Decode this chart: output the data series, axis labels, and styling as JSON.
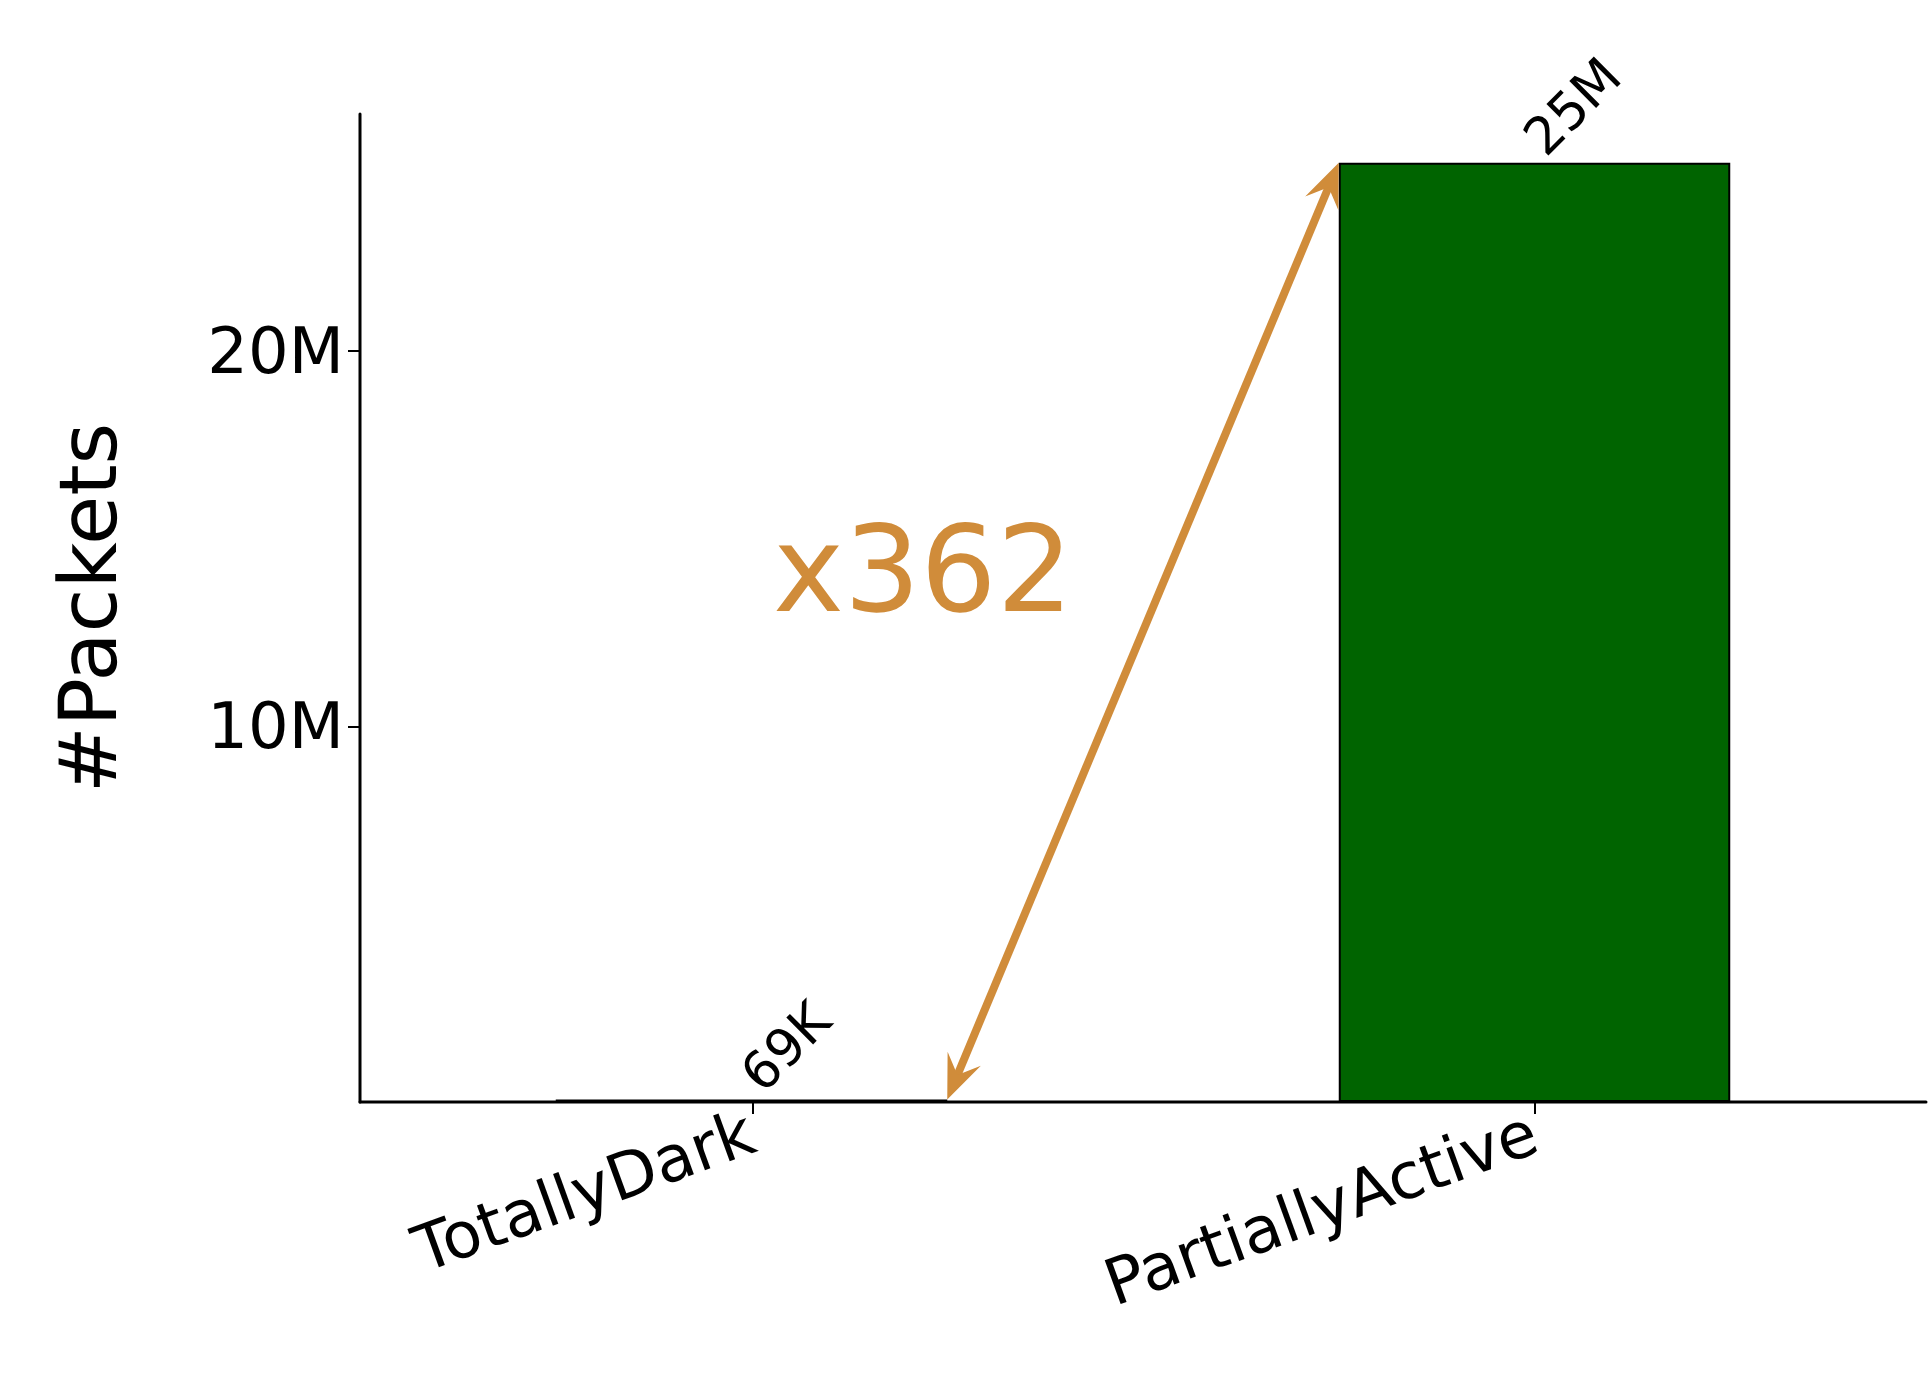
{
  "chart_data": {
    "type": "bar",
    "ylabel": "#Packets",
    "categories": [
      "TotallyDark",
      "PartiallyActive"
    ],
    "values": [
      69000,
      25000000
    ],
    "colors": [
      "#006400",
      "#006400"
    ],
    "value_labels": [
      "69K",
      "25M"
    ],
    "ylim": [
      0,
      26300000
    ],
    "yticks": [
      {
        "value": 10000000,
        "label": "10M"
      },
      {
        "value": 20000000,
        "label": "20M"
      }
    ],
    "grid": false,
    "annotations": [
      "x362"
    ]
  }
}
